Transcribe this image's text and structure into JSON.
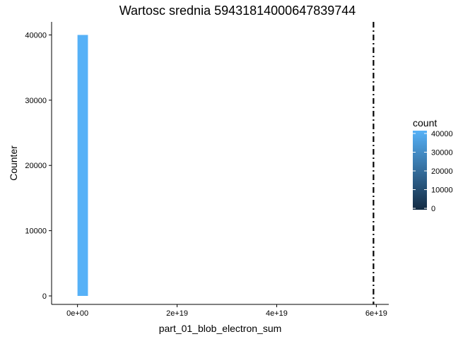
{
  "chart_data": {
    "type": "bar",
    "title": "Wartosc srednia 59431814000647839744",
    "xlabel": "part_01_blob_electron_sum",
    "ylabel": "Counter",
    "x_ticks": [
      {
        "value": 0,
        "label": "0e+00"
      },
      {
        "value": 2e+19,
        "label": "2e+19"
      },
      {
        "value": 4e+19,
        "label": "4e+19"
      },
      {
        "value": 6e+19,
        "label": "6e+19"
      }
    ],
    "y_ticks": [
      {
        "value": 0,
        "label": "0"
      },
      {
        "value": 10000,
        "label": "10000"
      },
      {
        "value": 20000,
        "label": "20000"
      },
      {
        "value": 30000,
        "label": "30000"
      },
      {
        "value": 40000,
        "label": "40000"
      }
    ],
    "xlim": [
      -5.2e+18,
      6.25e+19
    ],
    "ylim": [
      -1300,
      42000
    ],
    "bars": [
      {
        "x_start": 0,
        "x_end": 2.1e+18,
        "count": 40000
      }
    ],
    "vline": {
      "x": 5.943181400064784e+19,
      "linetype": "dotdash",
      "color": "#000000"
    },
    "legend": {
      "title": "count",
      "position": "right",
      "ticks": [
        {
          "value": 0,
          "label": "0"
        },
        {
          "value": 10000,
          "label": "10000"
        },
        {
          "value": 20000,
          "label": "20000"
        },
        {
          "value": 30000,
          "label": "30000"
        },
        {
          "value": 40000,
          "label": "40000"
        }
      ],
      "range": [
        0,
        40000
      ],
      "color_low": "#132B43",
      "color_high": "#56B1F7"
    },
    "grid": false
  }
}
